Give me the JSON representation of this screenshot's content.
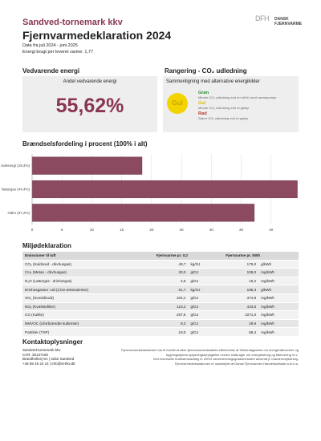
{
  "header": {
    "company": "Sandved-tornemark kkv",
    "title": "Fjernvarmedeklaration 2024",
    "period": "Data fra juli 2024 - juni 2025",
    "energy_use": "Energi brugt per leveret varme: 1,77",
    "logos": [
      "DFH",
      "DANSK FJERNVARME"
    ]
  },
  "renewable": {
    "heading": "Vedvarende energi",
    "label": "Andel vedvarende energi",
    "value": "55,62%"
  },
  "ranking": {
    "heading": "Rangering - CO₂ udledning",
    "label": "Sammenligning med alternative energikilder",
    "badge": "Gul",
    "levels": [
      {
        "name": "Grøn",
        "text": "Mindre CO₂ udledning end en luft til vand varmepumpe",
        "color": "#2e8b2e"
      },
      {
        "name": "Gul",
        "text": "Mindre CO₂ udledning end et gasfyr",
        "color": "#e0b800"
      },
      {
        "name": "Rød",
        "text": "Større CO₂ udledning end et gasfyr",
        "color": "#c0392b"
      }
    ]
  },
  "chart_data": {
    "type": "bar",
    "orientation": "horizontal",
    "title": "Brændselsfordeling i procent (100% i alt)",
    "categories": [
      "Solenergi (18,4%)",
      "Naturgas (44,4%)",
      "Halm (37,2%)"
    ],
    "values": [
      18.4,
      44.4,
      37.2
    ],
    "color": "#8c4a60",
    "xlim": [
      0,
      45
    ],
    "xticks": [
      0,
      5,
      10,
      15,
      20,
      25,
      30,
      35,
      40
    ],
    "grid": true
  },
  "table": {
    "heading": "Miljødeklaration",
    "columns": [
      "Emissioner til luft",
      "Fjernvarme pr. GJ",
      "Fjernvarme pr. kWh"
    ],
    "rows": [
      [
        "CO₂ (Kuldioxid - drivhusgas)",
        "49,7",
        "kg/GJ",
        "179,0",
        "g/kWh"
      ],
      [
        "CH₄ (Metan - drivhusgas)",
        "30,0",
        "g/GJ",
        "108,0",
        "mg/kWh"
      ],
      [
        "N₂O (Lattergas - drivhusgas)",
        "4,5",
        "g/GJ",
        "16,2",
        "mg/kWh"
      ],
      [
        "Drivhusgasser i alt (CO2-ækvivalenter)",
        "51,7",
        "kg/GJ",
        "186,3",
        "g/kWh"
      ],
      [
        "SO₂ (Svovldioxid)",
        "104,1",
        "g/GJ",
        "374,8",
        "mg/kWh"
      ],
      [
        "NOₓ (Kvælstofilter)",
        "123,2",
        "g/GJ",
        "443,5",
        "mg/kWh"
      ],
      [
        "CO (Kulilte)",
        "297,5",
        "g/GJ",
        "1071,0",
        "mg/kWh"
      ],
      [
        "NMVOC (Uforbrændte kulbrinter)",
        "8,3",
        "g/GJ",
        "29,9",
        "mg/kWh"
      ],
      [
        "Partikler (TSP)",
        "19,0",
        "g/GJ",
        "68,4",
        "mg/kWh"
      ]
    ]
  },
  "contact": {
    "heading": "Kontaktoplysninger",
    "lines": [
      "Sandved-tornemark kkv",
      "CVR: 30137160",
      "Brandholtvej 6A | 4262 Sandved",
      "+45 55 45 24 14 | info@st-kkv.dk"
    ],
    "notes": [
      "Fjernvarmedeklarationen har til formål at sikre fjernvarmeselskabets efterlevelse af 'Bekendtgørelse om energimåleordner og",
      "bygningsejeres oplysningsforpligtelse overfor slutbruger om energiforbrug og fakturering m.v.'",
      "Ved eventuelle kraftvarmeanlæg er 200% varmevirkningsgradsmetoden anvendt jf. branchevejledning.",
      "Fjernvarmedeklarationen er udarbejdet af Dansk Fjernvarmes Handelsselskab a.m.b.a."
    ]
  }
}
